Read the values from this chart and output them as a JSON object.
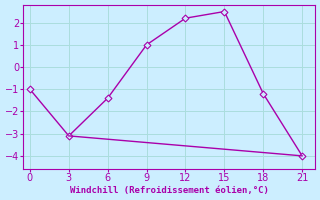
{
  "line1_x": [
    0,
    3,
    6,
    9,
    12,
    15,
    18,
    21
  ],
  "line1_y": [
    -1.0,
    -3.1,
    -1.4,
    1.0,
    2.2,
    2.5,
    -1.2,
    -4.0
  ],
  "line2_x": [
    3,
    6,
    9,
    12,
    15,
    18,
    21
  ],
  "line2_y": [
    -3.1,
    -3.25,
    -3.4,
    -3.55,
    -3.7,
    -3.85,
    -4.0
  ],
  "line_color": "#aa00aa",
  "bg_color": "#cceeff",
  "grid_color": "#aadddd",
  "xlabel": "Windchill (Refroidissement éolien,°C)",
  "xlim": [
    -0.5,
    22
  ],
  "ylim": [
    -4.6,
    2.8
  ],
  "xticks": [
    0,
    3,
    6,
    9,
    12,
    15,
    18,
    21
  ],
  "yticks": [
    -4,
    -3,
    -2,
    -1,
    0,
    1,
    2
  ],
  "marker": "D",
  "markersize": 3.5,
  "linewidth": 1.0
}
